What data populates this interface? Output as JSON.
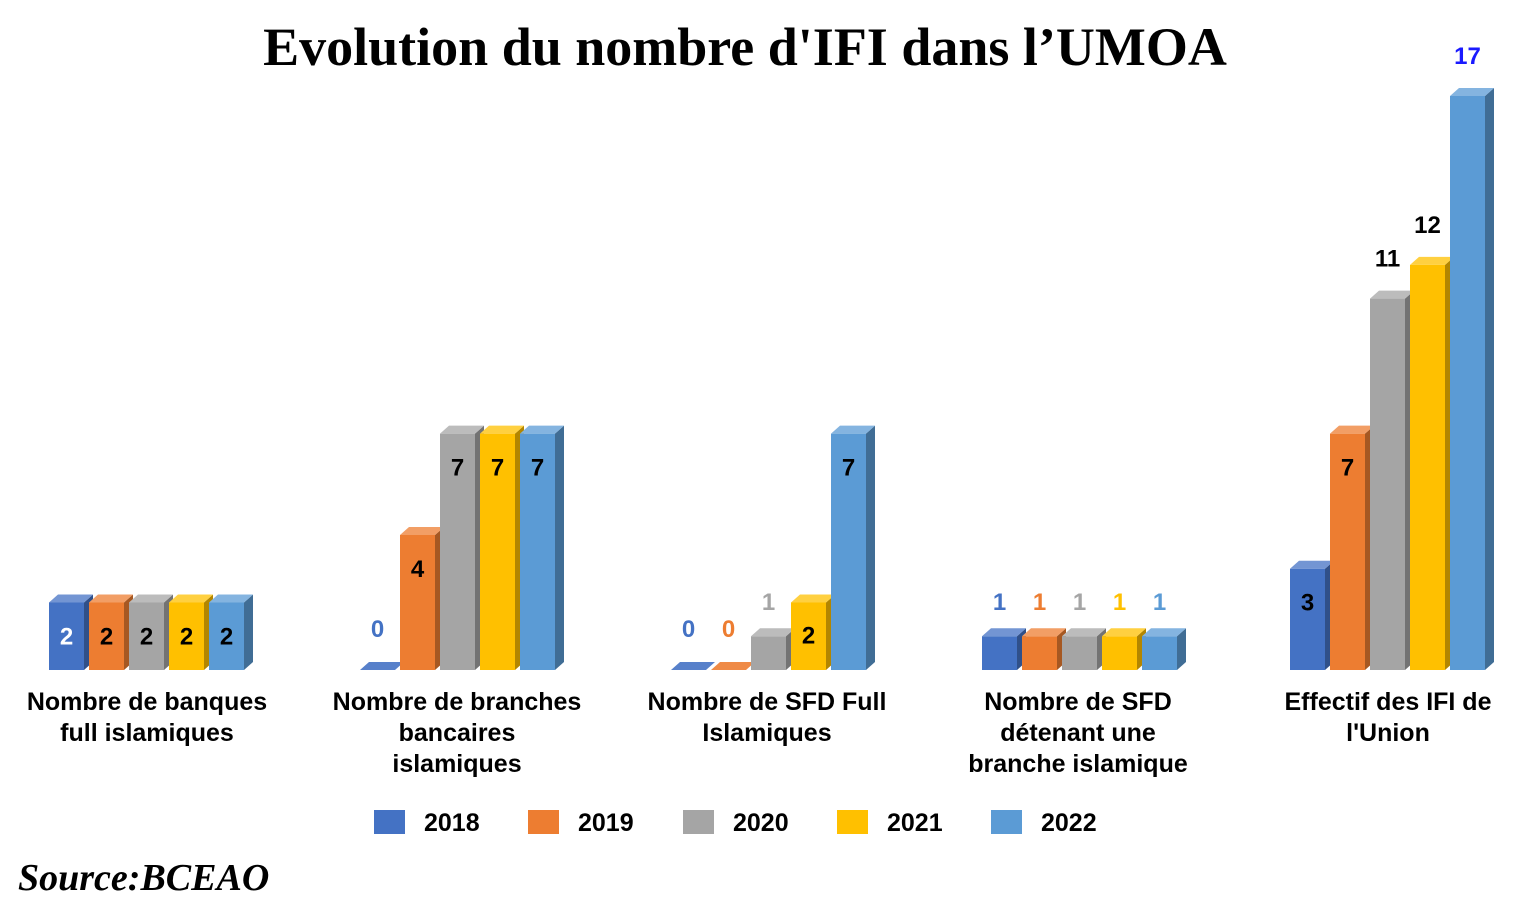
{
  "chart_data": {
    "type": "bar",
    "style": "3d-clustered-column",
    "title": "Evolution du nombre d'IFI dans l’UMOA",
    "categories": [
      [
        "Nombre de banques",
        "full islamiques"
      ],
      [
        "Nombre de branches",
        "bancaires",
        "islamiques"
      ],
      [
        "Nombre de SFD Full",
        "Islamiques"
      ],
      [
        "Nombre de SFD",
        "détenant une",
        "branche islamique"
      ],
      [
        "Effectif des IFI de",
        "l'Union"
      ]
    ],
    "series": [
      {
        "name": "2018",
        "color": "#4472C4",
        "values": [
          2,
          0,
          0,
          1,
          3
        ]
      },
      {
        "name": "2019",
        "color": "#ED7D31",
        "values": [
          2,
          4,
          0,
          1,
          7
        ]
      },
      {
        "name": "2020",
        "color": "#A5A5A5",
        "values": [
          2,
          7,
          1,
          1,
          11
        ]
      },
      {
        "name": "2021",
        "color": "#FFC000",
        "values": [
          2,
          7,
          2,
          1,
          12
        ]
      },
      {
        "name": "2022",
        "color": "#5B9BD5",
        "values": [
          2,
          7,
          7,
          1,
          17
        ]
      }
    ],
    "ylim": [
      0,
      17
    ],
    "grid": false,
    "legend": "bottom",
    "xlabel": "",
    "ylabel": ""
  },
  "source": "Source:BCEAO"
}
